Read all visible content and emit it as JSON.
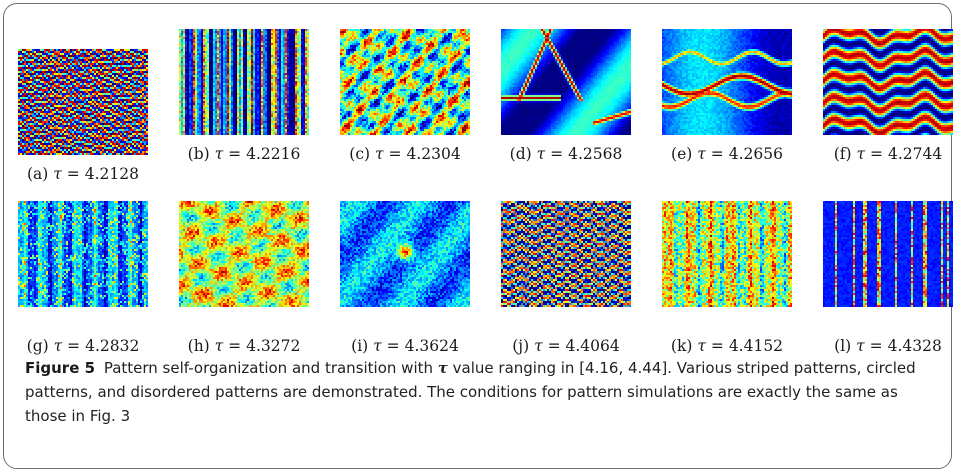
{
  "figure": {
    "label": "Figure 5",
    "caption_part1": "Pattern self-organization and transition with",
    "caption_symbol": "τ",
    "caption_part2": "value ranging in [4.16, 4.44]. Various striped patterns, circled patterns, and disordered patterns are demonstrated. The conditions for pattern simulations are exactly the same as those in Fig. 3"
  },
  "panels": [
    {
      "letter": "(a)",
      "symbol": "τ",
      "eq": "=",
      "value": "4.2128",
      "pattern": "fine-stripes-horizontal"
    },
    {
      "letter": "(b)",
      "symbol": "τ",
      "eq": "=",
      "value": "4.2216",
      "pattern": "vertical-streaks"
    },
    {
      "letter": "(c)",
      "symbol": "τ",
      "eq": "=",
      "value": "4.2304",
      "pattern": "disordered-patches"
    },
    {
      "letter": "(d)",
      "symbol": "τ",
      "eq": "=",
      "value": "4.2568",
      "pattern": "broad-triangle-stripes"
    },
    {
      "letter": "(e)",
      "symbol": "τ",
      "eq": "=",
      "value": "4.2656",
      "pattern": "broad-wavy-stripes"
    },
    {
      "letter": "(f)",
      "symbol": "τ",
      "eq": "=",
      "value": "4.2744",
      "pattern": "broad-horizontal-stripes"
    },
    {
      "letter": "(g)",
      "symbol": "τ",
      "eq": "=",
      "value": "4.2832",
      "pattern": "dark-vertical-noise"
    },
    {
      "letter": "(h)",
      "symbol": "τ",
      "eq": "=",
      "value": "4.3272",
      "pattern": "warm-noise"
    },
    {
      "letter": "(i)",
      "symbol": "τ",
      "eq": "=",
      "value": "4.3624",
      "pattern": "cool-noise-spot"
    },
    {
      "letter": "(j)",
      "symbol": "τ",
      "eq": "=",
      "value": "4.4064",
      "pattern": "dense-wavy-stripes"
    },
    {
      "letter": "(k)",
      "symbol": "τ",
      "eq": "=",
      "value": "4.4152",
      "pattern": "yellow-vertical-noise"
    },
    {
      "letter": "(l)",
      "symbol": "τ",
      "eq": "=",
      "value": "4.4328",
      "pattern": "blue-vertical-bars"
    }
  ],
  "colors": {
    "colormap": "jet",
    "frame_border": "#6f6f6f",
    "caption_text": "#222222"
  }
}
